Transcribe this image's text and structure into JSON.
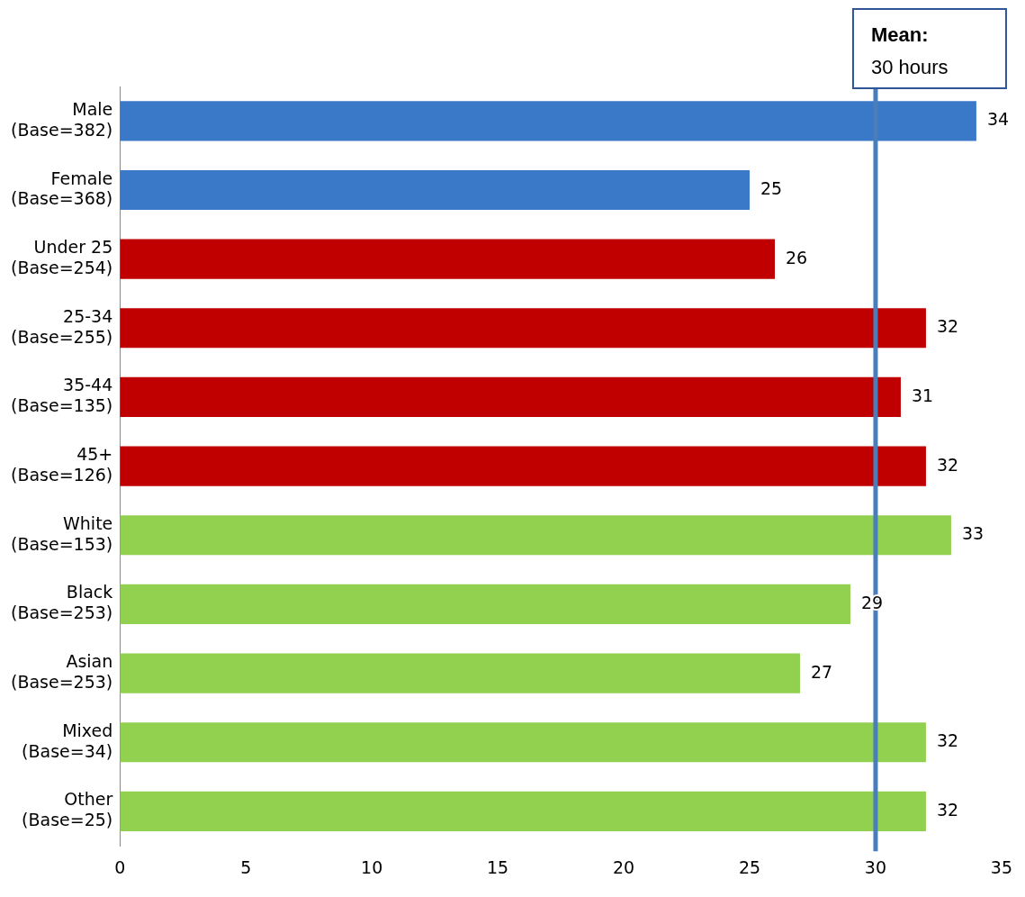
{
  "chart_data": {
    "type": "bar",
    "orientation": "horizontal",
    "categories": [
      "Male (Base=382)",
      "Female (Base=368)",
      "Under 25 (Base=254)",
      "25-34 (Base=255)",
      "35-44 (Base=135)",
      "45+ (Base=126)",
      "White (Base=153)",
      "Black (Base=253)",
      "Asian (Base=253)",
      "Mixed (Base=34)",
      "Other (Base=25)"
    ],
    "values": [
      34,
      25,
      26,
      32,
      31,
      32,
      33,
      29,
      27,
      32,
      32
    ],
    "colors": [
      "#3a78c8",
      "#3a78c8",
      "#c00000",
      "#c00000",
      "#c00000",
      "#c00000",
      "#92d050",
      "#92d050",
      "#92d050",
      "#92d050",
      "#92d050"
    ],
    "xlim": [
      0,
      35
    ],
    "xticks": [
      0,
      5,
      10,
      15,
      20,
      25,
      30,
      35
    ],
    "grid": false,
    "data_labels": true,
    "legend": false,
    "ref_lines": [
      {
        "axis": "x",
        "value": 30,
        "label": "Mean: 30 hours",
        "color": "#4a7ebb"
      }
    ]
  }
}
